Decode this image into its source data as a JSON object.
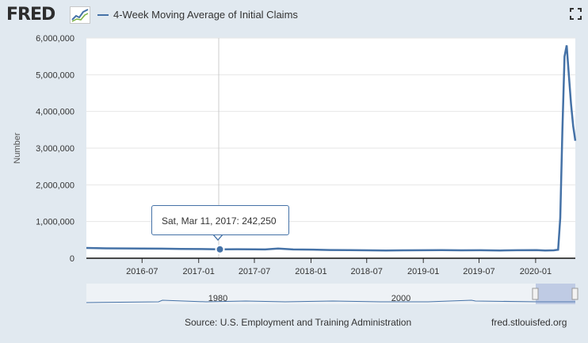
{
  "header": {
    "logo_text": "FRED",
    "legend_label": "4-Week Moving Average of Initial Claims",
    "series_color": "#4572a7",
    "fullscreen_icon": "fullscreen-icon"
  },
  "tooltip": {
    "date": "Sat, Mar 11, 2017:",
    "value": "242,250"
  },
  "footer": {
    "source": "Source: U.S. Employment and Training Administration",
    "credit": "fred.stlouisfed.org"
  },
  "navigator": {
    "tick_labels": [
      "1980",
      "2000"
    ]
  },
  "chart_data": {
    "type": "line",
    "ylabel": "Number",
    "ylim": [
      0,
      6000000
    ],
    "y_ticks": [
      "6,000,000",
      "5,000,000",
      "4,000,000",
      "3,000,000",
      "2,000,000",
      "1,000,000",
      "0"
    ],
    "y_tick_values": [
      6000000,
      5000000,
      4000000,
      3000000,
      2000000,
      1000000,
      0
    ],
    "x_ticks": [
      "2016-07",
      "2017-01",
      "2017-07",
      "2018-01",
      "2018-07",
      "2019-01",
      "2019-07",
      "2020-01"
    ],
    "x_tick_dates": [
      "2016-07-01",
      "2017-01-01",
      "2017-07-01",
      "2018-01-01",
      "2018-07-01",
      "2019-01-01",
      "2019-07-01",
      "2020-01-01"
    ],
    "xlim": [
      "2016-01-02",
      "2020-05-09"
    ],
    "grid": true,
    "series": [
      {
        "name": "4-Week Moving Average of Initial Claims",
        "x": [
          "2016-01-02",
          "2016-03-05",
          "2016-05-07",
          "2016-07-02",
          "2016-09-03",
          "2016-11-05",
          "2017-01-07",
          "2017-03-11",
          "2017-05-06",
          "2017-07-01",
          "2017-08-05",
          "2017-09-16",
          "2017-11-04",
          "2018-01-06",
          "2018-03-03",
          "2018-05-05",
          "2018-07-07",
          "2018-09-01",
          "2018-11-03",
          "2019-01-05",
          "2019-03-02",
          "2019-05-04",
          "2019-07-06",
          "2019-09-07",
          "2019-11-02",
          "2020-01-04",
          "2020-02-01",
          "2020-02-29",
          "2020-03-07",
          "2020-03-14",
          "2020-03-21",
          "2020-03-28",
          "2020-04-04",
          "2020-04-11",
          "2020-04-18",
          "2020-04-25",
          "2020-05-02",
          "2020-05-09"
        ],
        "y": [
          280000,
          270000,
          268000,
          266000,
          262000,
          255000,
          250000,
          242250,
          245000,
          244000,
          240000,
          265000,
          240000,
          235000,
          225000,
          222000,
          215000,
          212000,
          215000,
          218000,
          222000,
          215000,
          218000,
          212000,
          218000,
          222000,
          212000,
          215000,
          225000,
          232000,
          1100000,
          3500000,
          5500000,
          5800000,
          5000000,
          4200000,
          3600000,
          3200000
        ]
      }
    ],
    "highlight": {
      "x": "2017-03-11",
      "y": 242250
    }
  }
}
